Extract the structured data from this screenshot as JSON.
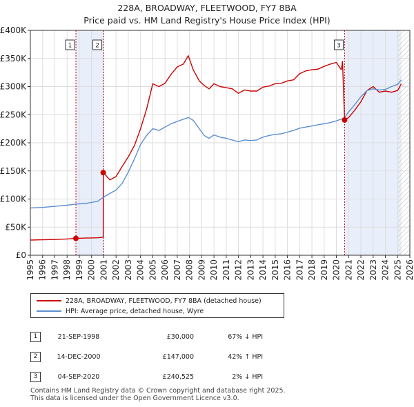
{
  "title_line1": "228A, BROADWAY, FLEETWOOD, FY7 8BA",
  "title_line2": "Price paid vs. HM Land Registry's House Price Index (HPI)",
  "colors": {
    "red": "#cc0000",
    "blue": "#5b8fd0",
    "shade": "#e8eefa",
    "grid": "#dddddd"
  },
  "chart_data": {
    "type": "line",
    "title": "228A, BROADWAY, FLEETWOOD, FY7 8BA — Price paid vs. HM Land Registry's House Price Index (HPI)",
    "xlabel": "",
    "ylabel": "",
    "xlim": [
      1995,
      2026
    ],
    "ylim": [
      0,
      400000
    ],
    "x_ticks": [
      1995,
      1996,
      1997,
      1998,
      1999,
      2000,
      2001,
      2002,
      2003,
      2004,
      2005,
      2006,
      2007,
      2008,
      2009,
      2010,
      2011,
      2012,
      2013,
      2014,
      2015,
      2016,
      2017,
      2018,
      2019,
      2020,
      2021,
      2022,
      2023,
      2024,
      2025,
      2026
    ],
    "y_ticks": [
      {
        "value": 0,
        "label": "£0"
      },
      {
        "value": 50000,
        "label": "£50K"
      },
      {
        "value": 100000,
        "label": "£100K"
      },
      {
        "value": 150000,
        "label": "£150K"
      },
      {
        "value": 200000,
        "label": "£200K"
      },
      {
        "value": 250000,
        "label": "£250K"
      },
      {
        "value": 300000,
        "label": "£300K"
      },
      {
        "value": 350000,
        "label": "£350K"
      },
      {
        "value": 400000,
        "label": "£400K"
      }
    ],
    "series": [
      {
        "name": "228A, BROADWAY, FLEETWOOD, FY7 8BA (detached house)",
        "color": "#cc0000",
        "x": [
          1995.0,
          1996.0,
          1997.0,
          1998.0,
          1998.72,
          1999.5,
          2000.5,
          2000.95,
          2000.96,
          2001.5,
          2002.0,
          2002.5,
          2003.0,
          2003.5,
          2004.0,
          2004.5,
          2005.0,
          2005.5,
          2006.0,
          2006.5,
          2007.0,
          2007.5,
          2007.9,
          2008.3,
          2008.8,
          2009.2,
          2009.6,
          2010.0,
          2010.5,
          2011.0,
          2011.5,
          2012.0,
          2012.5,
          2013.0,
          2013.5,
          2014.0,
          2014.5,
          2015.0,
          2015.5,
          2016.0,
          2016.5,
          2017.0,
          2017.5,
          2018.0,
          2018.5,
          2019.0,
          2019.5,
          2020.0,
          2020.4,
          2020.5,
          2020.67,
          2021.0,
          2021.5,
          2022.0,
          2022.5,
          2023.0,
          2023.5,
          2024.0,
          2024.5,
          2025.0,
          2025.3
        ],
        "y": [
          27000,
          27500,
          28000,
          29000,
          30000,
          30500,
          31000,
          32000,
          147000,
          134000,
          140000,
          158000,
          175000,
          195000,
          225000,
          260000,
          305000,
          300000,
          306000,
          322000,
          335000,
          340000,
          355000,
          330000,
          310000,
          302000,
          296000,
          305000,
          300000,
          298000,
          296000,
          288000,
          294000,
          292000,
          292000,
          299000,
          301000,
          305000,
          306000,
          310000,
          312000,
          323000,
          328000,
          330000,
          331000,
          336000,
          340000,
          343000,
          330000,
          345000,
          240525,
          245000,
          258000,
          273000,
          293000,
          300000,
          290000,
          292000,
          290000,
          293000,
          305000
        ]
      },
      {
        "name": "HPI: Average price, detached house, Wyre",
        "color": "#5b8fd0",
        "x": [
          1995.0,
          1996.0,
          1997.0,
          1998.0,
          1998.72,
          1999.5,
          2000.5,
          2000.96,
          2001.5,
          2002.0,
          2002.5,
          2003.0,
          2003.5,
          2004.0,
          2004.5,
          2005.0,
          2005.5,
          2006.0,
          2006.5,
          2007.0,
          2007.5,
          2007.9,
          2008.3,
          2008.8,
          2009.2,
          2009.6,
          2010.0,
          2010.5,
          2011.0,
          2011.5,
          2012.0,
          2012.5,
          2013.0,
          2013.5,
          2014.0,
          2014.5,
          2015.0,
          2015.5,
          2016.0,
          2016.5,
          2017.0,
          2017.5,
          2018.0,
          2018.5,
          2019.0,
          2019.5,
          2020.0,
          2020.5,
          2020.67,
          2021.0,
          2021.5,
          2022.0,
          2022.5,
          2023.0,
          2023.5,
          2024.0,
          2024.5,
          2025.0,
          2025.3
        ],
        "y": [
          84000,
          85000,
          87000,
          89000,
          91000,
          92000,
          96000,
          103000,
          110000,
          116000,
          128000,
          148000,
          171000,
          197000,
          213000,
          225000,
          222000,
          228000,
          234000,
          238000,
          242000,
          245000,
          240000,
          225000,
          213000,
          208000,
          214000,
          210000,
          208000,
          205000,
          202000,
          205000,
          204000,
          205000,
          210000,
          213000,
          215000,
          216000,
          219000,
          222000,
          226000,
          228000,
          230000,
          232000,
          234000,
          236000,
          239000,
          243000,
          245000,
          255000,
          268000,
          282000,
          293000,
          296000,
          294000,
          295000,
          300000,
          304000,
          312000
        ]
      }
    ],
    "sales": [
      {
        "id": "1",
        "x": 1998.72,
        "y": 30000
      },
      {
        "id": "2",
        "x": 2000.95,
        "y": 147000
      },
      {
        "id": "3",
        "x": 2020.67,
        "y": 240525
      }
    ],
    "shaded_ranges": [
      [
        1998.72,
        2000.95
      ],
      [
        2020.67,
        2025.3
      ]
    ],
    "hatched_from": 2025.0
  },
  "legend": {
    "red_label": "228A, BROADWAY, FLEETWOOD, FY7 8BA (detached house)",
    "blue_label": "HPI: Average price, detached house, Wyre"
  },
  "transactions": [
    {
      "num": "1",
      "date": "21-SEP-1998",
      "price": "£30,000",
      "hpi": "67% ↓ HPI"
    },
    {
      "num": "2",
      "date": "14-DEC-2000",
      "price": "£147,000",
      "hpi": "42% ↑ HPI"
    },
    {
      "num": "3",
      "date": "04-SEP-2020",
      "price": "£240,525",
      "hpi": "2% ↓ HPI"
    }
  ],
  "footer_line1": "Contains HM Land Registry data © Crown copyright and database right 2025.",
  "footer_line2": "This data is licensed under the Open Government Licence v3.0."
}
